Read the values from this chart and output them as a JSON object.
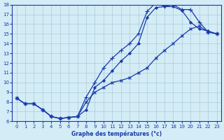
{
  "xlabel": "Graphe des températures (°c)",
  "xlim": [
    -0.5,
    23.5
  ],
  "ylim": [
    6,
    18
  ],
  "xticks": [
    0,
    1,
    2,
    3,
    4,
    5,
    6,
    7,
    8,
    9,
    10,
    11,
    12,
    13,
    14,
    15,
    16,
    17,
    18,
    19,
    20,
    21,
    22,
    23
  ],
  "yticks": [
    6,
    7,
    8,
    9,
    10,
    11,
    12,
    13,
    14,
    15,
    16,
    17,
    18
  ],
  "bg_color": "#d4ecf5",
  "line_color": "#1a3aaa",
  "grid_color": "#aaccd8",
  "line1_x": [
    0,
    1,
    2,
    3,
    4,
    5,
    6,
    7,
    8,
    9,
    10,
    11,
    12,
    13,
    14,
    15,
    16,
    17,
    18,
    19,
    20,
    21,
    22,
    23
  ],
  "line1_y": [
    8.4,
    7.8,
    7.8,
    7.2,
    6.5,
    6.3,
    6.4,
    6.5,
    7.2,
    9.5,
    10.2,
    11.2,
    12.2,
    13.0,
    14.0,
    16.7,
    17.7,
    17.8,
    17.8,
    17.4,
    16.2,
    15.5,
    15.3,
    15.0
  ],
  "line2_x": [
    0,
    1,
    2,
    3,
    4,
    5,
    6,
    7,
    8,
    9,
    10,
    11,
    12,
    13,
    14,
    15,
    16,
    17,
    18,
    19,
    20,
    21,
    22,
    23
  ],
  "line2_y": [
    8.4,
    7.8,
    7.8,
    7.2,
    6.5,
    6.3,
    6.4,
    6.5,
    8.5,
    10.0,
    11.5,
    12.5,
    13.3,
    14.0,
    15.0,
    17.3,
    18.2,
    17.8,
    18.0,
    17.5,
    17.5,
    16.2,
    15.2,
    15.0
  ],
  "line3_x": [
    0,
    1,
    2,
    3,
    4,
    5,
    6,
    7,
    8,
    9,
    10,
    11,
    12,
    13,
    14,
    15,
    16,
    17,
    18,
    19,
    20,
    21,
    22,
    23
  ],
  "line3_y": [
    8.4,
    7.8,
    7.8,
    7.2,
    6.5,
    6.3,
    6.4,
    6.5,
    8.0,
    9.0,
    9.5,
    10.0,
    10.2,
    10.5,
    11.0,
    11.5,
    12.5,
    13.3,
    14.0,
    14.8,
    15.5,
    15.8,
    15.2,
    15.0
  ]
}
